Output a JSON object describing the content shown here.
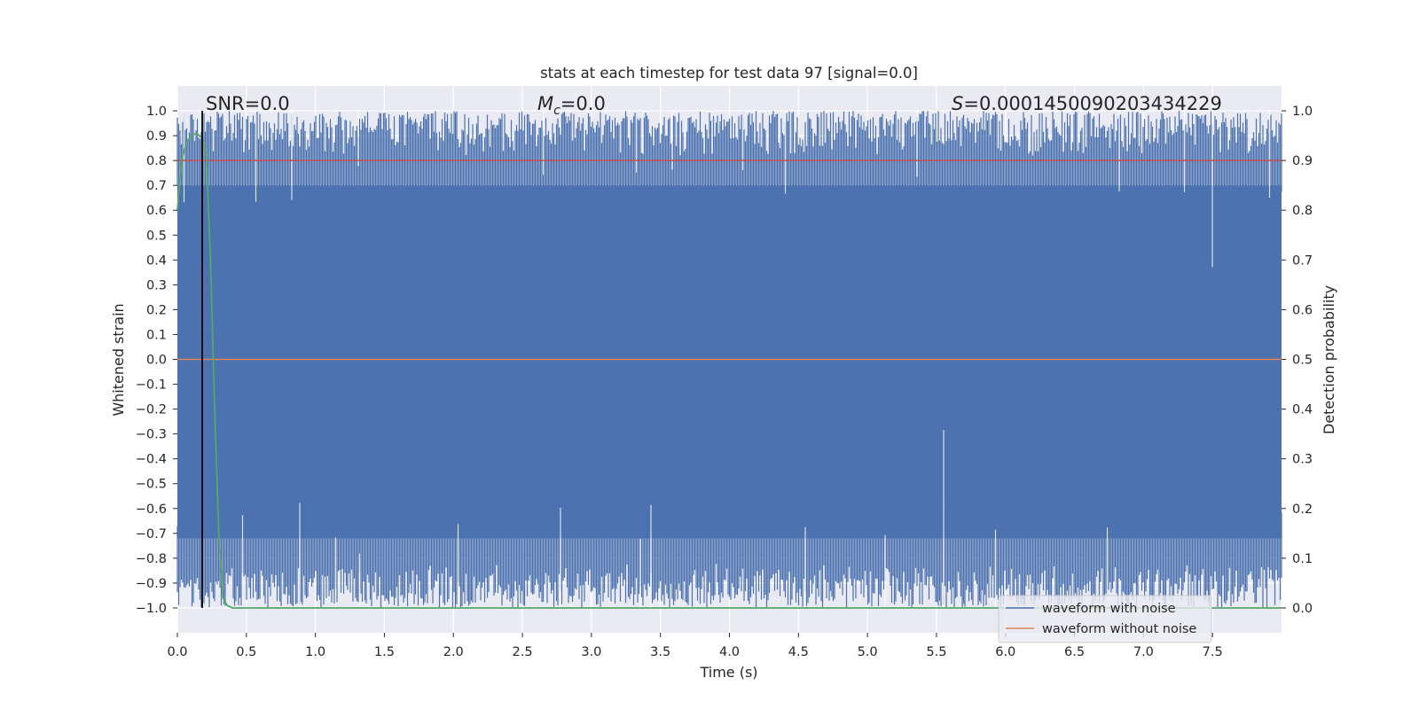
{
  "chart_data": {
    "type": "line",
    "title": "stats at each timestep for test data 97 [signal=0.0]",
    "xlabel": "Time (s)",
    "ylabel_left": "Whitened strain",
    "ylabel_right": "Detection probability",
    "xlim": [
      0.0,
      8.0
    ],
    "ylim_left": [
      -1.1,
      1.1
    ],
    "ylim_right": [
      -0.05,
      1.05
    ],
    "x_ticks": [
      "0.0",
      "0.5",
      "1.0",
      "1.5",
      "2.0",
      "2.5",
      "3.0",
      "3.5",
      "4.0",
      "4.5",
      "5.0",
      "5.5",
      "6.0",
      "6.5",
      "7.0",
      "7.5"
    ],
    "y_left_ticks": [
      "1.0",
      "0.9",
      "0.8",
      "0.7",
      "0.6",
      "0.5",
      "0.4",
      "0.3",
      "0.2",
      "0.1",
      "0.0",
      "−0.1",
      "−0.2",
      "−0.3",
      "−0.4",
      "−0.5",
      "−0.6",
      "−0.7",
      "−0.8",
      "−0.9",
      "−1.0"
    ],
    "y_right_ticks": [
      "1.0",
      "0.9",
      "0.8",
      "0.7",
      "0.6",
      "0.5",
      "0.4",
      "0.3",
      "0.2",
      "0.1",
      "0.0"
    ],
    "grid": true,
    "annotations": {
      "snr": "SNR=0.0",
      "mc_symbol": "M",
      "mc_sub": "c",
      "mc_value": "=0.0",
      "s_symbol": "S",
      "s_value": "=0.0001450090203434229"
    },
    "series": [
      {
        "name": "waveform with noise",
        "color": "#4c72b0",
        "axis": "left",
        "description": "dense noise spanning approximately -1.0 to 1.0 across 0-8 s"
      },
      {
        "name": "waveform without noise",
        "color": "#dd8452",
        "axis": "left",
        "values_constant": 0.0
      },
      {
        "name": "detection probability",
        "color": "#55a868",
        "axis": "right",
        "x": [
          0.0,
          0.03,
          0.06,
          0.1,
          0.14,
          0.18,
          0.21,
          0.24,
          0.27,
          0.3,
          0.33,
          0.36,
          0.4,
          8.0
        ],
        "y": [
          0.8,
          0.9,
          0.93,
          0.95,
          0.955,
          0.945,
          0.91,
          0.7,
          0.4,
          0.15,
          0.02,
          0.005,
          0.0,
          0.0
        ]
      },
      {
        "name": "threshold",
        "color": "#c44e52",
        "axis": "right",
        "values_constant": 0.9
      }
    ],
    "event_marker_x": 0.18,
    "legend": {
      "location": "bottom-right",
      "entries": [
        {
          "label": "waveform with noise",
          "color": "#4c72b0"
        },
        {
          "label": "waveform without noise",
          "color": "#dd8452"
        }
      ]
    }
  },
  "colors": {
    "plot_background": "#eaeaf2",
    "grid": "#ffffff",
    "noise": "#4c72b0",
    "clean": "#dd8452",
    "probability": "#55a868",
    "threshold": "#c44e52",
    "marker": "#000000"
  }
}
